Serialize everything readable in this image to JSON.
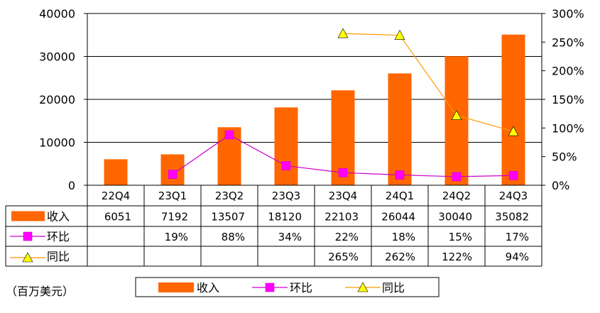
{
  "chart_data": {
    "type": "bar",
    "categories": [
      "22Q4",
      "23Q1",
      "23Q2",
      "23Q3",
      "23Q4",
      "24Q1",
      "24Q2",
      "24Q3"
    ],
    "series": [
      {
        "name": "收入",
        "type": "bar",
        "axis": "left",
        "color": "#FF6600",
        "values": [
          6051,
          7192,
          13507,
          18120,
          22103,
          26044,
          30040,
          35082
        ],
        "labels": [
          "6051",
          "7192",
          "13507",
          "18120",
          "22103",
          "26044",
          "30040",
          "35082"
        ]
      },
      {
        "name": "环比",
        "type": "line",
        "axis": "right",
        "color": "#CC00CC",
        "marker": "square",
        "marker_color": "#FF00FF",
        "values": [
          null,
          19,
          88,
          34,
          22,
          18,
          15,
          17
        ],
        "labels": [
          "",
          "19%",
          "88%",
          "34%",
          "22%",
          "18%",
          "15%",
          "17%"
        ]
      },
      {
        "name": "同比",
        "type": "line",
        "axis": "right",
        "color": "#FF9900",
        "marker": "triangle",
        "marker_color": "#FFFF00",
        "values": [
          null,
          null,
          null,
          null,
          265,
          262,
          122,
          94
        ],
        "labels": [
          "",
          "",
          "",
          "",
          "265%",
          "262%",
          "122%",
          "94%"
        ]
      }
    ],
    "y_left": {
      "min": 0,
      "max": 40000,
      "ticks": [
        "0",
        "10000",
        "20000",
        "30000",
        "40000"
      ]
    },
    "y_right": {
      "min": 0,
      "max": 300,
      "ticks": [
        "0%",
        "50%",
        "100%",
        "150%",
        "200%",
        "250%",
        "300%"
      ]
    },
    "grid": true,
    "data_table": true,
    "legend_position": "bottom",
    "unit_note": "（百万美元）"
  },
  "legend": {
    "items": [
      "收入",
      "环比",
      "同比"
    ]
  }
}
